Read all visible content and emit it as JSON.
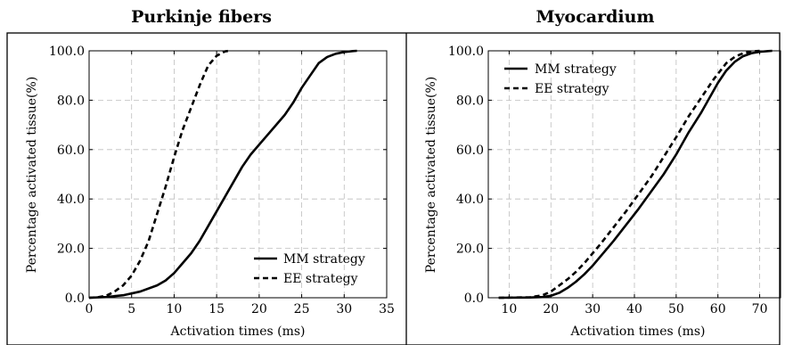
{
  "chart_data": [
    {
      "type": "line",
      "title": "Purkinje fibers",
      "xlabel": "Activation times (ms)",
      "ylabel": "Percentage activated tissue(%)",
      "xlim": [
        0,
        35
      ],
      "ylim": [
        0,
        100
      ],
      "xticks": [
        "0",
        "5",
        "10",
        "15",
        "20",
        "25",
        "30",
        "35"
      ],
      "xtick_values": [
        0,
        5,
        10,
        15,
        20,
        25,
        30,
        35
      ],
      "yticks": [
        "0.0",
        "20.0",
        "40.0",
        "60.0",
        "80.0",
        "100.0"
      ],
      "ytick_values": [
        0,
        20,
        40,
        60,
        80,
        100
      ],
      "grid": true,
      "legend_position": "bottom-right",
      "series": [
        {
          "name": "MM strategy",
          "style": "solid",
          "x": [
            0,
            2,
            4,
            6,
            8,
            9,
            10,
            11,
            12,
            13,
            14,
            15,
            16,
            17,
            18,
            19,
            20,
            21,
            22,
            23,
            24,
            25,
            26,
            27,
            28,
            29,
            30,
            31,
            31.5
          ],
          "y": [
            0,
            0.3,
            1,
            2.5,
            5,
            7,
            10,
            14,
            18,
            23,
            29,
            35,
            41,
            47,
            53,
            58,
            62,
            66,
            70,
            74,
            79,
            85,
            90,
            95,
            97.5,
            98.8,
            99.5,
            99.9,
            100
          ]
        },
        {
          "name": "EE strategy",
          "style": "dashed",
          "x": [
            0,
            1,
            2,
            3,
            4,
            5,
            6,
            7,
            8,
            9,
            10,
            11,
            12,
            13,
            14,
            15,
            16,
            16.5
          ],
          "y": [
            0,
            0.2,
            0.8,
            2.5,
            5,
            9,
            15,
            23,
            34,
            45,
            57,
            68,
            77,
            86,
            94,
            98,
            99.8,
            100
          ]
        }
      ]
    },
    {
      "type": "line",
      "title": "Myocardium",
      "xlabel": "Activation times (ms)",
      "ylabel": "Percentage activated tissue(%)",
      "xlim": [
        5,
        75
      ],
      "ylim": [
        0,
        100
      ],
      "xticks": [
        "10",
        "20",
        "30",
        "40",
        "50",
        "60",
        "70"
      ],
      "xtick_values": [
        10,
        20,
        30,
        40,
        50,
        60,
        70
      ],
      "yticks": [
        "0.0",
        "20.0",
        "40.0",
        "60.0",
        "80.0",
        "100.0"
      ],
      "ytick_values": [
        0,
        20,
        40,
        60,
        80,
        100
      ],
      "grid": true,
      "legend_position": "top-left",
      "series": [
        {
          "name": "MM strategy",
          "style": "solid",
          "x": [
            7.5,
            15,
            18,
            20,
            22,
            24,
            26,
            28,
            30,
            32,
            35,
            38,
            41,
            44,
            47,
            50,
            53,
            56,
            58,
            60,
            62,
            64,
            66,
            68,
            70,
            72,
            73
          ],
          "y": [
            0,
            0.1,
            0.3,
            0.8,
            2,
            4,
            6.5,
            9.5,
            13,
            17,
            23,
            29.5,
            36,
            43,
            50,
            58,
            67,
            75,
            81,
            87,
            92,
            95.5,
            97.8,
            99,
            99.6,
            99.9,
            100
          ]
        },
        {
          "name": "EE strategy",
          "style": "dashed",
          "x": [
            7.5,
            15,
            18,
            20,
            22,
            24,
            26,
            28,
            30,
            32,
            35,
            38,
            41,
            44,
            47,
            50,
            53,
            56,
            59,
            62,
            64,
            66,
            68,
            70
          ],
          "y": [
            0,
            0.2,
            1,
            2.5,
            5,
            7.5,
            10.5,
            14,
            18,
            22,
            28.5,
            35,
            42,
            49,
            57,
            65,
            73.5,
            81,
            88.5,
            95,
            97.5,
            99,
            99.7,
            100
          ]
        }
      ]
    }
  ]
}
